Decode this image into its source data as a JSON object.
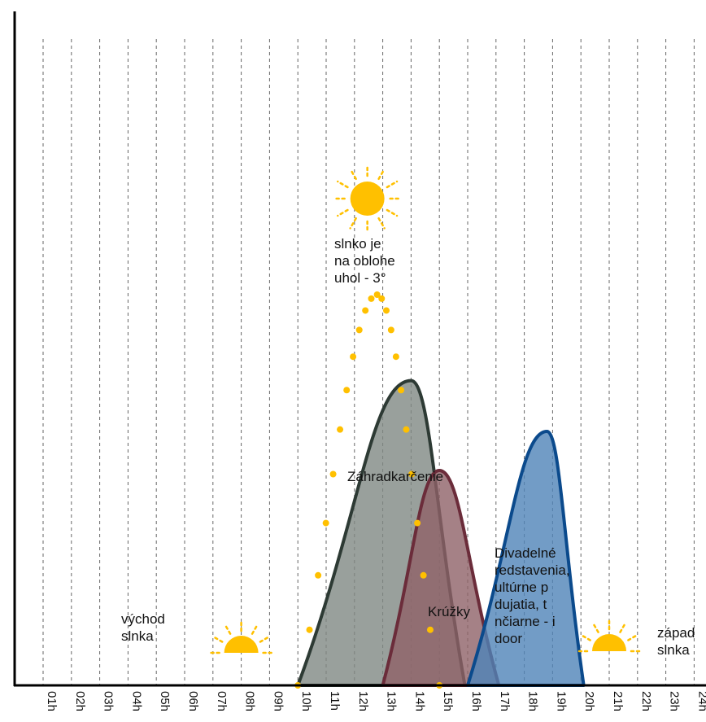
{
  "chart_data": {
    "type": "area",
    "title": "",
    "xlabel": "",
    "ylabel": "",
    "x_ticks": [
      "01h",
      "02h",
      "03h",
      "04h",
      "05h",
      "06h",
      "07h",
      "08h",
      "09h",
      "10h",
      "11h",
      "12h",
      "13h",
      "14h",
      "15h",
      "16h",
      "17h",
      "18h",
      "19h",
      "20h",
      "21h",
      "22h",
      "23h",
      "24h"
    ],
    "xlim": [
      1,
      24
    ],
    "grid": "vertical dashed",
    "series": [
      {
        "name": "Záhradkarčenie",
        "start": 10,
        "end": 15.9,
        "peak_x": 14,
        "peak": 0.78,
        "stroke": "#2d3a34",
        "fill": "#7f8883"
      },
      {
        "name": "Krúžky",
        "start": 13,
        "end": 17.1,
        "peak_x": 15,
        "peak": 0.55,
        "stroke": "#6b2c3a",
        "fill": "#8e6268"
      },
      {
        "name": "Divadelné predstavenia, kultúrne podujatia, tančiarne - indoor",
        "start": 16,
        "end": 20.1,
        "peak_x": 18.8,
        "peak": 0.65,
        "stroke": "#0b4a8c",
        "fill": "#4f83b8"
      }
    ],
    "sun_path": {
      "color": "#ffc000",
      "start": 10,
      "end": 15,
      "peak_x": 12.8,
      "peak": 1.0
    },
    "annotations": {
      "sunrise": {
        "text": [
          "východ",
          "slnka"
        ],
        "x": 8
      },
      "sunset": {
        "text": [
          "západ",
          "slnka"
        ],
        "x": 21
      },
      "noon": {
        "text": [
          "slnko je",
          "na oblohe",
          "uhol - 3°"
        ],
        "x": 12.8
      }
    }
  }
}
